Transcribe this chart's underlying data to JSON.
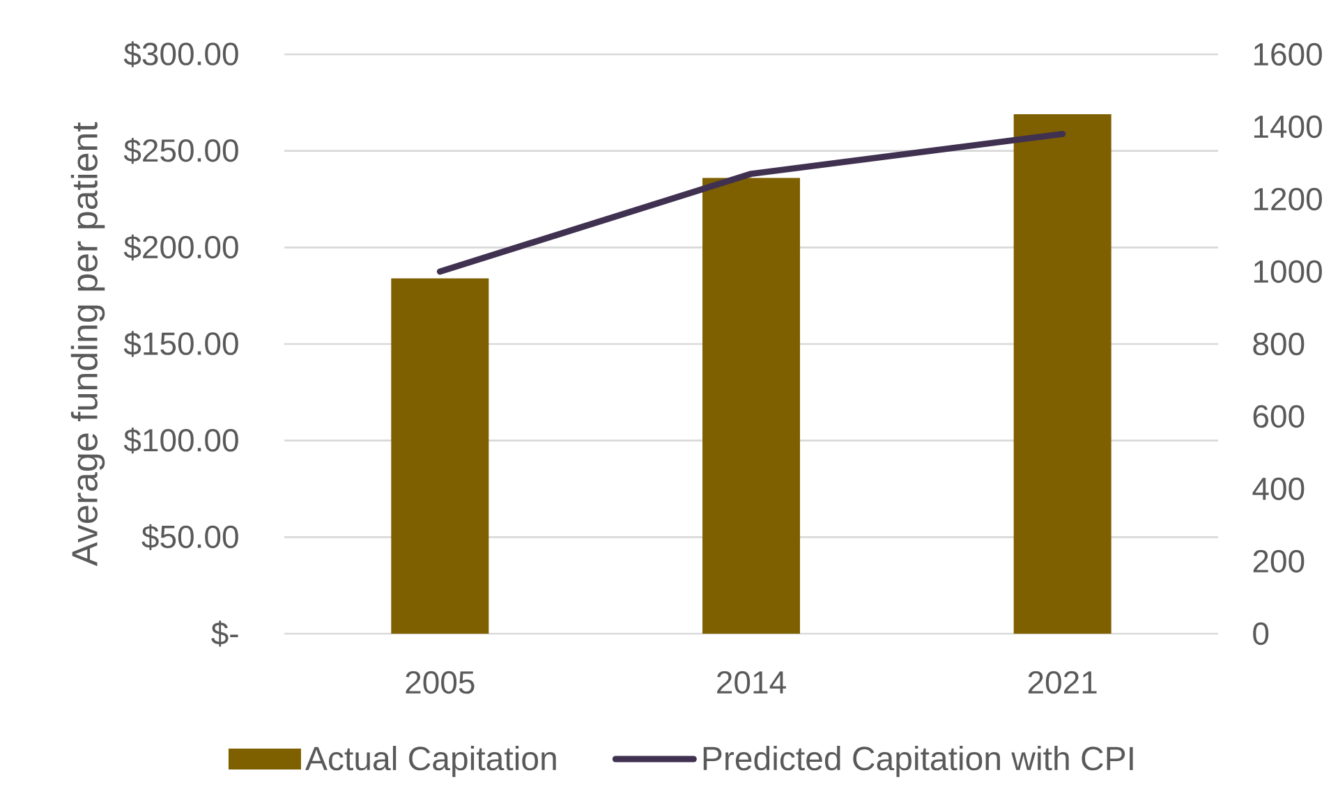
{
  "chart_data": {
    "type": "bar",
    "ylabel": "Average funding per patient",
    "categories": [
      "2005",
      "2014",
      "2021"
    ],
    "series": [
      {
        "name": "Actual Capitation",
        "color": "#7f6000",
        "values": [
          184,
          236,
          269
        ]
      },
      {
        "name": "Predicted Capitation with CPI",
        "type": "line",
        "axis": "y2",
        "color": "#403151",
        "values": [
          1000,
          1270,
          1380
        ]
      }
    ],
    "ylim": [
      0,
      300
    ],
    "yticks": [
      {
        "value": 0,
        "label": "$-"
      },
      {
        "value": 50,
        "label": "$50.00"
      },
      {
        "value": 100,
        "label": "$100.00"
      },
      {
        "value": 150,
        "label": "$150.00"
      },
      {
        "value": 200,
        "label": "$200.00"
      },
      {
        "value": 250,
        "label": "$250.00"
      },
      {
        "value": 300,
        "label": "$300.00"
      }
    ],
    "y2lim": [
      0,
      1600
    ],
    "y2ticks": [
      0,
      200,
      400,
      600,
      800,
      1000,
      1200,
      1400,
      1600
    ],
    "grid": "y",
    "legend": "bottom",
    "marker": "none"
  }
}
